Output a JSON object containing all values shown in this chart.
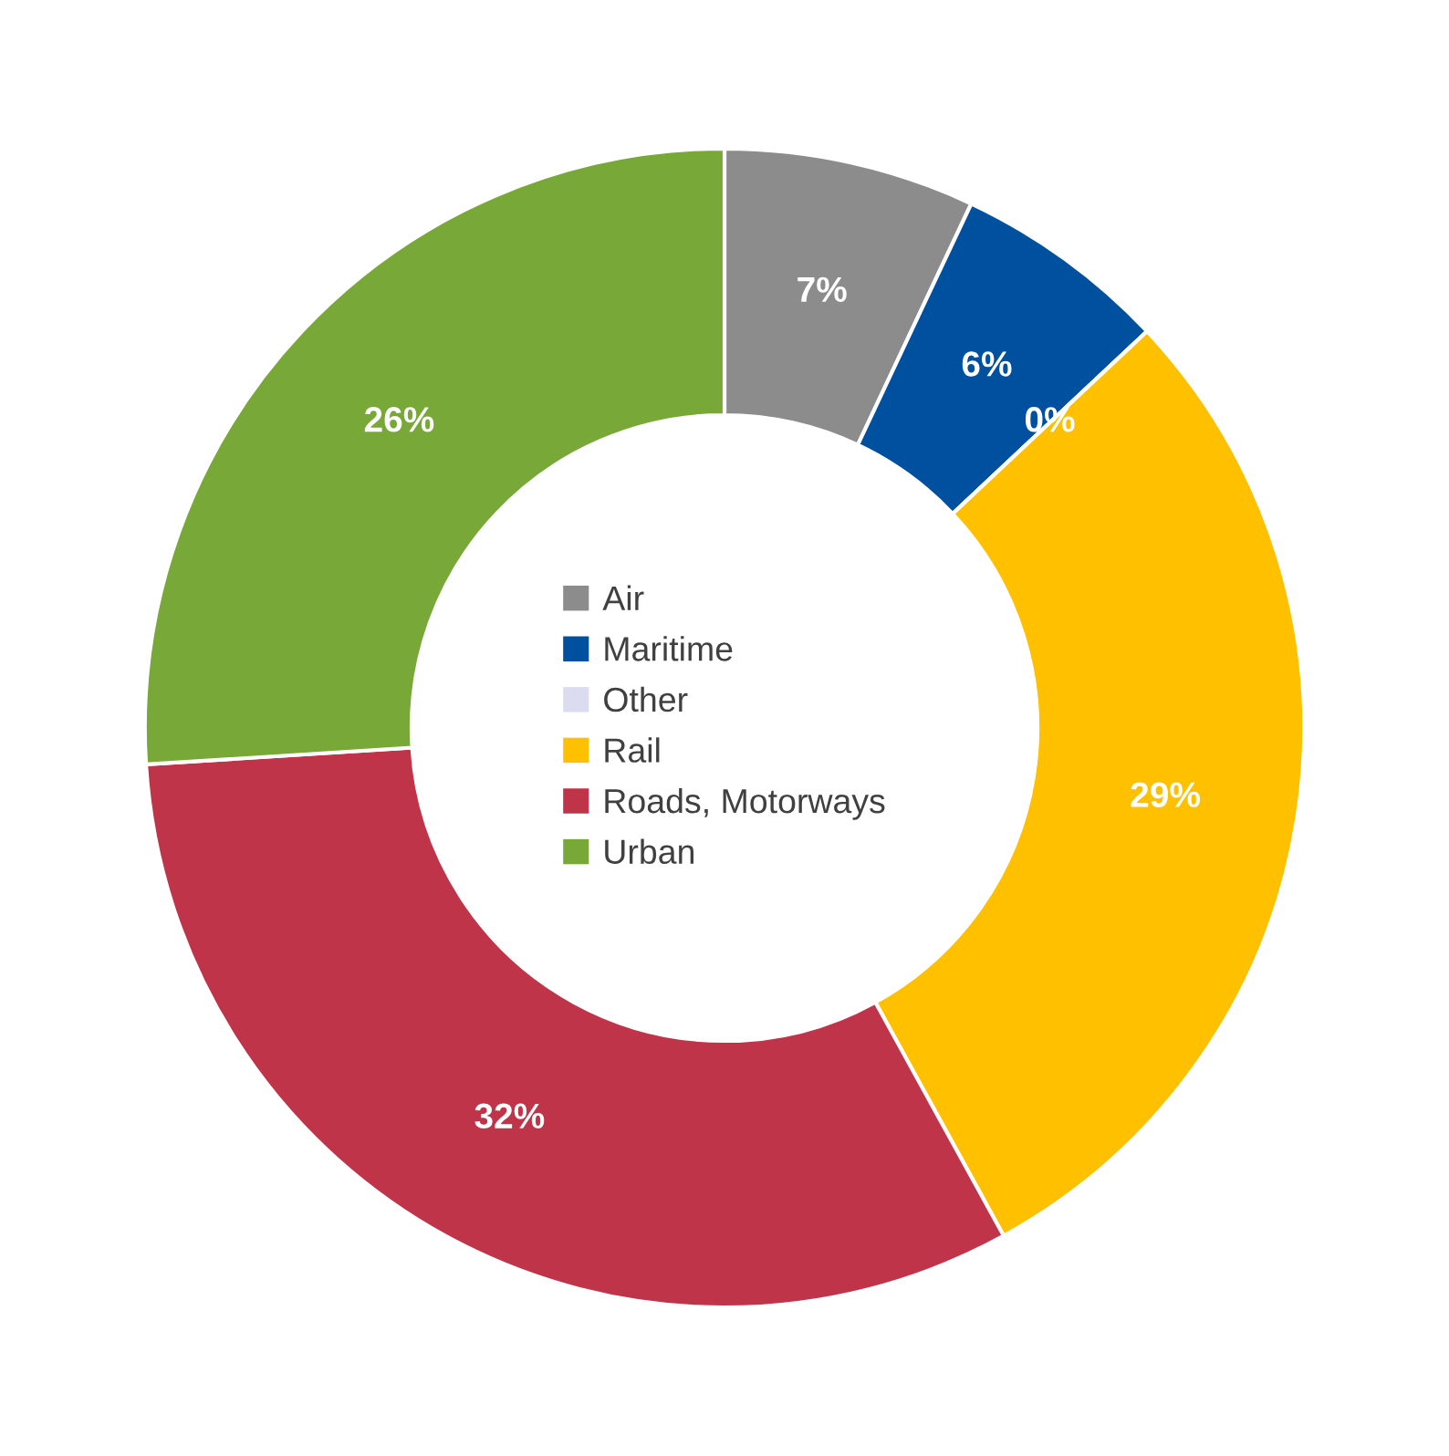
{
  "chart_data": {
    "type": "donut",
    "categories": [
      "Air",
      "Maritime",
      "Other",
      "Rail",
      "Roads, Motorways",
      "Urban"
    ],
    "values": [
      7,
      6,
      0,
      29,
      32,
      26
    ],
    "colors": [
      "#8c8c8c",
      "#0050a0",
      "#dcdcf0",
      "#ffc000",
      "#c0344a",
      "#78a838"
    ],
    "value_labels": [
      "7%",
      "6%",
      "0%",
      "29%",
      "32%",
      "26%"
    ],
    "legend": "center"
  }
}
